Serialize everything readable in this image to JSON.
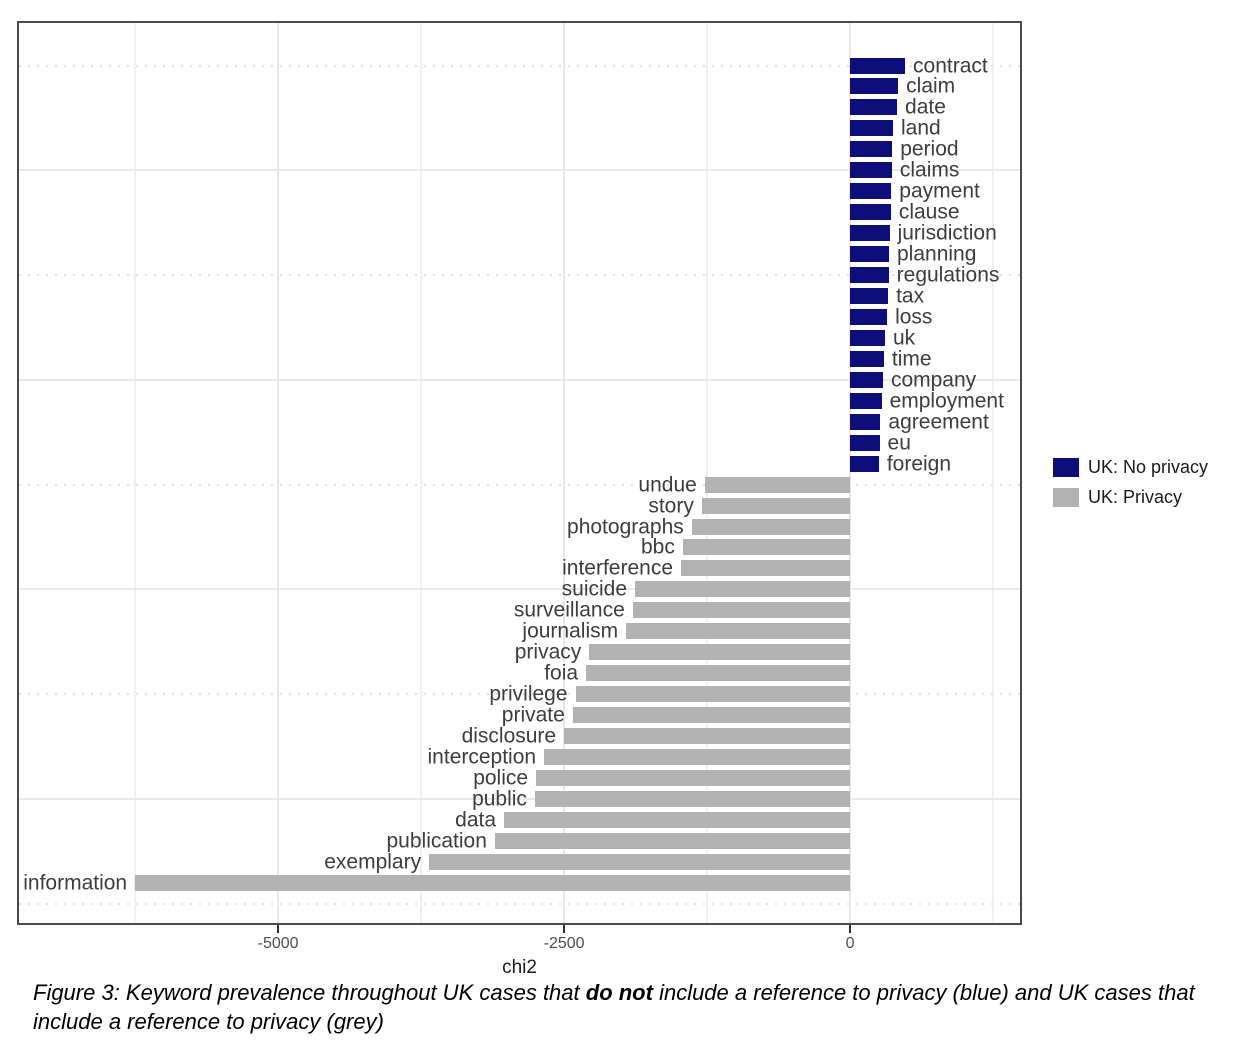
{
  "chart_data": {
    "type": "bar",
    "orientation": "horizontal",
    "title": "",
    "xlabel": "chi2",
    "ylabel": "",
    "xlim": [
      -7265,
      1485
    ],
    "x_ticks": [
      {
        "value": -5000,
        "label": "-5000"
      },
      {
        "value": -2500,
        "label": "-2500"
      },
      {
        "value": 0,
        "label": "0"
      }
    ],
    "x_minor_gridlines": [
      -6250,
      -3750,
      -1250,
      1250
    ],
    "h_gridlines_solid_at_rows": [
      5,
      15,
      25,
      35
    ],
    "h_gridlines_dotted_at_rows": [
      0,
      10,
      20,
      30,
      40
    ],
    "grid": "on",
    "legend_position": "right",
    "series": [
      {
        "name": "UK: No privacy",
        "color": "#0e0e7b",
        "points": [
          {
            "label": "contract",
            "value": 480
          },
          {
            "label": "claim",
            "value": 420
          },
          {
            "label": "date",
            "value": 410
          },
          {
            "label": "land",
            "value": 375
          },
          {
            "label": "period",
            "value": 368
          },
          {
            "label": "claims",
            "value": 365
          },
          {
            "label": "payment",
            "value": 360
          },
          {
            "label": "clause",
            "value": 356
          },
          {
            "label": "jurisdiction",
            "value": 345
          },
          {
            "label": "planning",
            "value": 340
          },
          {
            "label": "regulations",
            "value": 337
          },
          {
            "label": "tax",
            "value": 332
          },
          {
            "label": "loss",
            "value": 323
          },
          {
            "label": "uk",
            "value": 305
          },
          {
            "label": "time",
            "value": 295
          },
          {
            "label": "company",
            "value": 287
          },
          {
            "label": "employment",
            "value": 275
          },
          {
            "label": "agreement",
            "value": 265
          },
          {
            "label": "eu",
            "value": 257
          },
          {
            "label": "foreign",
            "value": 251
          }
        ]
      },
      {
        "name": "UK: Privacy",
        "color": "#b2b2b2",
        "points": [
          {
            "label": "undue",
            "value": -1270
          },
          {
            "label": "story",
            "value": -1296
          },
          {
            "label": "photographs",
            "value": -1384
          },
          {
            "label": "bbc",
            "value": -1462
          },
          {
            "label": "interference",
            "value": -1478
          },
          {
            "label": "suicide",
            "value": -1880
          },
          {
            "label": "surveillance",
            "value": -1900
          },
          {
            "label": "journalism",
            "value": -1958
          },
          {
            "label": "privacy",
            "value": -2280
          },
          {
            "label": "foia",
            "value": -2308
          },
          {
            "label": "privilege",
            "value": -2400
          },
          {
            "label": "private",
            "value": -2424
          },
          {
            "label": "disclosure",
            "value": -2500
          },
          {
            "label": "interception",
            "value": -2675
          },
          {
            "label": "police",
            "value": -2745
          },
          {
            "label": "public",
            "value": -2755
          },
          {
            "label": "data",
            "value": -3025
          },
          {
            "label": "publication",
            "value": -3105
          },
          {
            "label": "exemplary",
            "value": -3680
          },
          {
            "label": "information",
            "value": -6250
          }
        ]
      }
    ]
  },
  "caption": {
    "prefix": "Figure 3: Keyword prevalence throughout UK cases that ",
    "bold": "do not",
    "suffix": " include a reference to privacy (blue) and UK cases that include a reference to privacy (grey)"
  }
}
